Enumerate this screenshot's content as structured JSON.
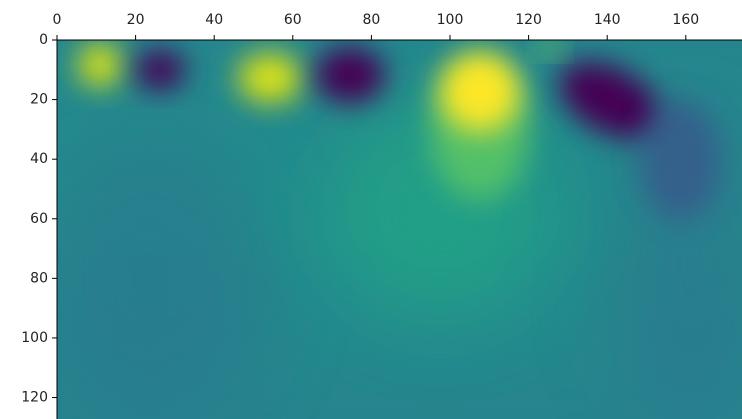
{
  "chart_data": {
    "type": "image",
    "xlim": [
      0,
      174.3
    ],
    "xticks": [
      0,
      20,
      40,
      60,
      80,
      100,
      120,
      140,
      160
    ],
    "ylim": [
      0,
      127.2
    ],
    "yticks": [
      0,
      20,
      40,
      60,
      80,
      100,
      120
    ],
    "y_inverted": true,
    "x_axis_position": "top"
  }
}
